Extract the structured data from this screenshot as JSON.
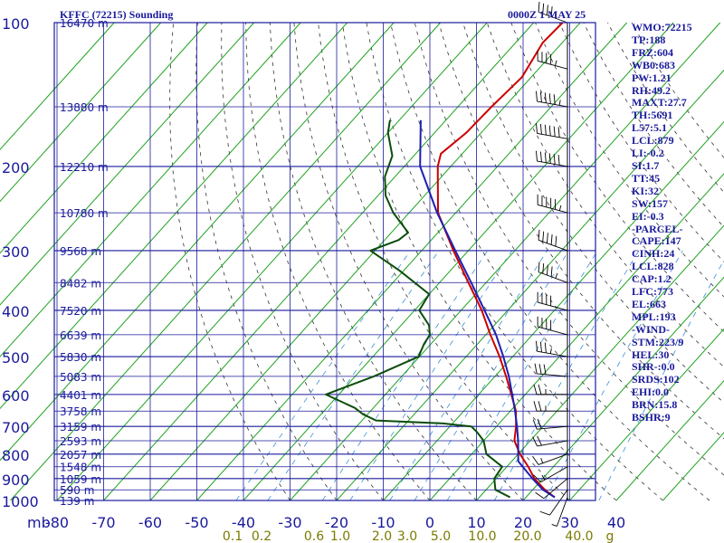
{
  "header": {
    "station": "KFFC (72215) Sounding",
    "time": "0000Z  1 MAY 25"
  },
  "stats": [
    "WMO:72215",
    "TP:188",
    "FRZ:604",
    "WB0:683",
    "PW:1.21",
    "RH:49.2",
    "MAXT:27.7",
    "TH:5691",
    "L57:5.1",
    "LCL:879",
    "LI:-0.2",
    "SI:1.7",
    "TT:45",
    "KI:32",
    "SW:157",
    "EI:-0.3",
    "-PARCEL-",
    "CAPE:147",
    "CINH:24",
    "LCL:828",
    "CAP:1.2",
    "LFC:773",
    "EL:663",
    "MPL:193",
    "-WIND-",
    "STM:223/9",
    "HEL:30",
    "SHR-:0.0",
    "SRDS:102",
    "EHI:0.0",
    "BRN:15.8",
    "BSHR:9"
  ],
  "colors": {
    "frame": "#1a1a9c",
    "isobar": "#1a1a9c",
    "isotherm": "#1fa31f",
    "dry_adiabat": "#333333",
    "mixing_ratio": "#3a8fd6",
    "temperature": "#cc0000",
    "dewpoint": "#0b4d0b",
    "parcel": "#1f1fb0",
    "wind": "#000000",
    "label": "#1a1a9c"
  },
  "chart_data": {
    "type": "line",
    "title": "KFFC (72215) Sounding",
    "subtitle": "0000Z  1 MAY 25",
    "x_unit_label": "mb",
    "y_scale": "log-pressure",
    "ylim": [
      1000,
      100
    ],
    "xlim": [
      -80,
      40
    ],
    "pressure_ticks": [
      100,
      200,
      300,
      400,
      500,
      600,
      700,
      800,
      900,
      1000
    ],
    "temperature_ticks": [
      -80,
      -70,
      -60,
      -50,
      -40,
      -30,
      -20,
      -10,
      0,
      10,
      20,
      30,
      40
    ],
    "mixing_ratio_labels": [
      "0.1",
      "0.2",
      "0.6",
      "1.0",
      "2.0",
      "3.0",
      "5.0",
      "10.0",
      "20.0",
      "40.0",
      "g"
    ],
    "height_labels": [
      {
        "p": 100,
        "text": "16470 m"
      },
      {
        "p": 150,
        "text": "13880 m"
      },
      {
        "p": 200,
        "text": "12210 m"
      },
      {
        "p": 250,
        "text": "10780 m"
      },
      {
        "p": 300,
        "text": "9568 m"
      },
      {
        "p": 350,
        "text": "8482 m"
      },
      {
        "p": 400,
        "text": "7520 m"
      },
      {
        "p": 450,
        "text": "6639 m"
      },
      {
        "p": 500,
        "text": "5830 m"
      },
      {
        "p": 550,
        "text": "5083 m"
      },
      {
        "p": 600,
        "text": "4401 m"
      },
      {
        "p": 650,
        "text": "3758 m"
      },
      {
        "p": 700,
        "text": "3159 m"
      },
      {
        "p": 750,
        "text": "2593 m"
      },
      {
        "p": 800,
        "text": "2057 m"
      },
      {
        "p": 850,
        "text": "1548 m"
      },
      {
        "p": 900,
        "text": "1059 m"
      },
      {
        "p": 950,
        "text": "590 m"
      },
      {
        "p": 1000,
        "text": "139 m"
      }
    ],
    "series": [
      {
        "key": "temperature",
        "points": [
          [
            985,
            26.2
          ],
          [
            950,
            22.6
          ],
          [
            900,
            18.2
          ],
          [
            850,
            14.6
          ],
          [
            800,
            10.4
          ],
          [
            750,
            6.6
          ],
          [
            700,
            4.2
          ],
          [
            650,
            1.2
          ],
          [
            600,
            -3.0
          ],
          [
            550,
            -7.6
          ],
          [
            500,
            -12.8
          ],
          [
            450,
            -19.0
          ],
          [
            400,
            -25.6
          ],
          [
            350,
            -33.8
          ],
          [
            300,
            -43.2
          ],
          [
            250,
            -53.8
          ],
          [
            200,
            -62.8
          ],
          [
            188,
            -64.6
          ],
          [
            170,
            -63.2
          ],
          [
            150,
            -62.8
          ],
          [
            130,
            -62.0
          ],
          [
            110,
            -64.2
          ],
          [
            100,
            -63.8
          ]
        ]
      },
      {
        "key": "dewpoint",
        "points": [
          [
            985,
            16.6
          ],
          [
            950,
            12.0
          ],
          [
            900,
            9.6
          ],
          [
            850,
            9.0
          ],
          [
            800,
            3.2
          ],
          [
            750,
            0.0
          ],
          [
            720,
            -3.0
          ],
          [
            700,
            -5.4
          ],
          [
            690,
            -12.0
          ],
          [
            680,
            -27.0
          ],
          [
            660,
            -31.0
          ],
          [
            640,
            -34.0
          ],
          [
            600,
            -42.8
          ],
          [
            550,
            -36.0
          ],
          [
            500,
            -30.2
          ],
          [
            470,
            -31.5
          ],
          [
            450,
            -32.0
          ],
          [
            430,
            -34.0
          ],
          [
            400,
            -39.0
          ],
          [
            370,
            -40.0
          ],
          [
            330,
            -51.0
          ],
          [
            300,
            -61.0
          ],
          [
            285,
            -57.0
          ],
          [
            275,
            -56.4
          ],
          [
            250,
            -63.4
          ],
          [
            230,
            -68.4
          ],
          [
            210,
            -72.2
          ],
          [
            190,
            -74.6
          ],
          [
            170,
            -80.0
          ],
          [
            160,
            -82.0
          ]
        ]
      },
      {
        "key": "parcel",
        "points": [
          [
            985,
            26.2
          ],
          [
            950,
            22.2
          ],
          [
            900,
            17.8
          ],
          [
            850,
            13.4
          ],
          [
            828,
            11.4
          ],
          [
            800,
            10.0
          ],
          [
            750,
            7.4
          ],
          [
            700,
            4.4
          ],
          [
            650,
            1.0
          ],
          [
            600,
            -2.8
          ],
          [
            550,
            -7.0
          ],
          [
            500,
            -12.0
          ],
          [
            450,
            -17.8
          ],
          [
            400,
            -25.0
          ],
          [
            350,
            -33.2
          ],
          [
            300,
            -42.8
          ],
          [
            250,
            -54.0
          ],
          [
            200,
            -66.6
          ],
          [
            160,
            -75.4
          ]
        ]
      }
    ],
    "wind_barbs": [
      {
        "p": 985,
        "dir": 200,
        "kt": 5
      },
      {
        "p": 950,
        "dir": 215,
        "kt": 10
      },
      {
        "p": 900,
        "dir": 230,
        "kt": 10
      },
      {
        "p": 850,
        "dir": 240,
        "kt": 15
      },
      {
        "p": 800,
        "dir": 250,
        "kt": 15
      },
      {
        "p": 750,
        "dir": 260,
        "kt": 20
      },
      {
        "p": 700,
        "dir": 265,
        "kt": 20
      },
      {
        "p": 650,
        "dir": 270,
        "kt": 25
      },
      {
        "p": 600,
        "dir": 270,
        "kt": 25
      },
      {
        "p": 550,
        "dir": 275,
        "kt": 30
      },
      {
        "p": 500,
        "dir": 280,
        "kt": 35
      },
      {
        "p": 450,
        "dir": 285,
        "kt": 40
      },
      {
        "p": 400,
        "dir": 285,
        "kt": 40
      },
      {
        "p": 350,
        "dir": 290,
        "kt": 45
      },
      {
        "p": 300,
        "dir": 290,
        "kt": 50
      },
      {
        "p": 250,
        "dir": 285,
        "kt": 55
      },
      {
        "p": 200,
        "dir": 280,
        "kt": 60
      },
      {
        "p": 175,
        "dir": 280,
        "kt": 60
      },
      {
        "p": 150,
        "dir": 280,
        "kt": 55
      },
      {
        "p": 125,
        "dir": 285,
        "kt": 45
      },
      {
        "p": 100,
        "dir": 290,
        "kt": 40
      }
    ],
    "grid": true,
    "legend": "none"
  }
}
